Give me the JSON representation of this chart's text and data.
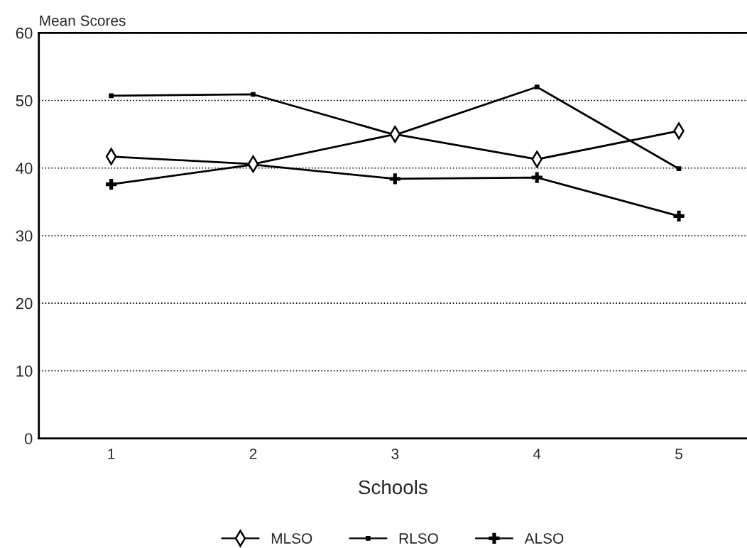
{
  "chart_data": {
    "type": "line",
    "ylabel": "Mean Scores",
    "xlabel": "Schools",
    "categories": [
      "1",
      "2",
      "3",
      "4",
      "5"
    ],
    "series": [
      {
        "name": "MLSO",
        "color": "#000000",
        "marker": "diamond",
        "values": [
          41.7,
          40.6,
          45.0,
          41.3,
          45.5
        ]
      },
      {
        "name": "RLSO",
        "color": "#000000",
        "marker": "square",
        "values": [
          50.7,
          50.9,
          44.9,
          52.0,
          39.9
        ]
      },
      {
        "name": "ALSO",
        "color": "#000000",
        "marker": "cross",
        "values": [
          37.6,
          40.5,
          38.4,
          38.6,
          32.9
        ]
      }
    ],
    "ylim": [
      0,
      60
    ],
    "yticks": [
      0,
      10,
      20,
      30,
      40,
      50,
      60
    ],
    "grid": "y",
    "legend": "bottom",
    "line_style": "solid"
  }
}
